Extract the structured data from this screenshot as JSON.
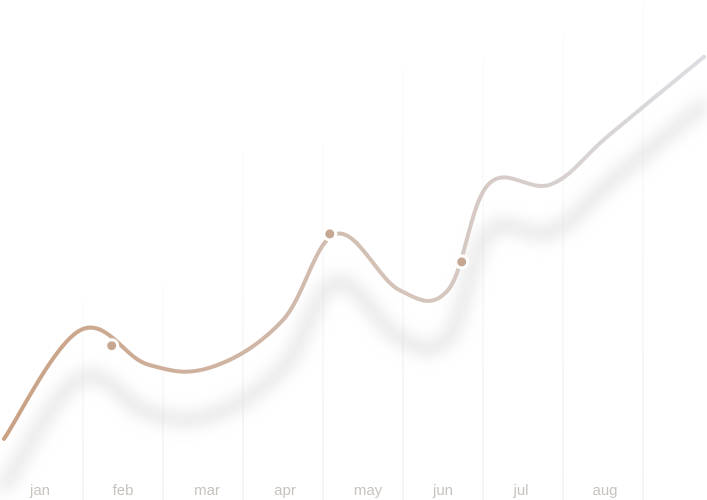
{
  "chart_data": {
    "type": "line",
    "categories": [
      "jan",
      "feb",
      "mar",
      "apr",
      "may",
      "jun",
      "jul",
      "aug"
    ],
    "points": [
      {
        "x": 0.0,
        "y": 0.1
      },
      {
        "x": 0.85,
        "y": 0.45
      },
      {
        "x": 1.6,
        "y": 0.34
      },
      {
        "x": 2.3,
        "y": 0.33
      },
      {
        "x": 3.1,
        "y": 0.48
      },
      {
        "x": 3.7,
        "y": 0.76
      },
      {
        "x": 4.4,
        "y": 0.58
      },
      {
        "x": 4.95,
        "y": 0.58
      },
      {
        "x": 5.4,
        "y": 0.92
      },
      {
        "x": 6.1,
        "y": 0.92
      },
      {
        "x": 6.75,
        "y": 1.08
      },
      {
        "x": 7.8,
        "y": 1.33
      }
    ],
    "markers": [
      {
        "x": 1.2,
        "y": 0.4
      },
      {
        "x": 3.63,
        "y": 0.76
      },
      {
        "x": 5.1,
        "y": 0.67
      }
    ],
    "ylim": [
      0,
      1.5
    ],
    "xlim": [
      0,
      7.8
    ],
    "grid": "vertical",
    "legend": "none",
    "colors": {
      "line_start": "#c9a183",
      "line_end": "#dcdde3",
      "marker": "#c4a691",
      "grid": "#ece9e6",
      "shadow": "#c2c2c2",
      "tick_label": "#c8c2bd"
    }
  }
}
